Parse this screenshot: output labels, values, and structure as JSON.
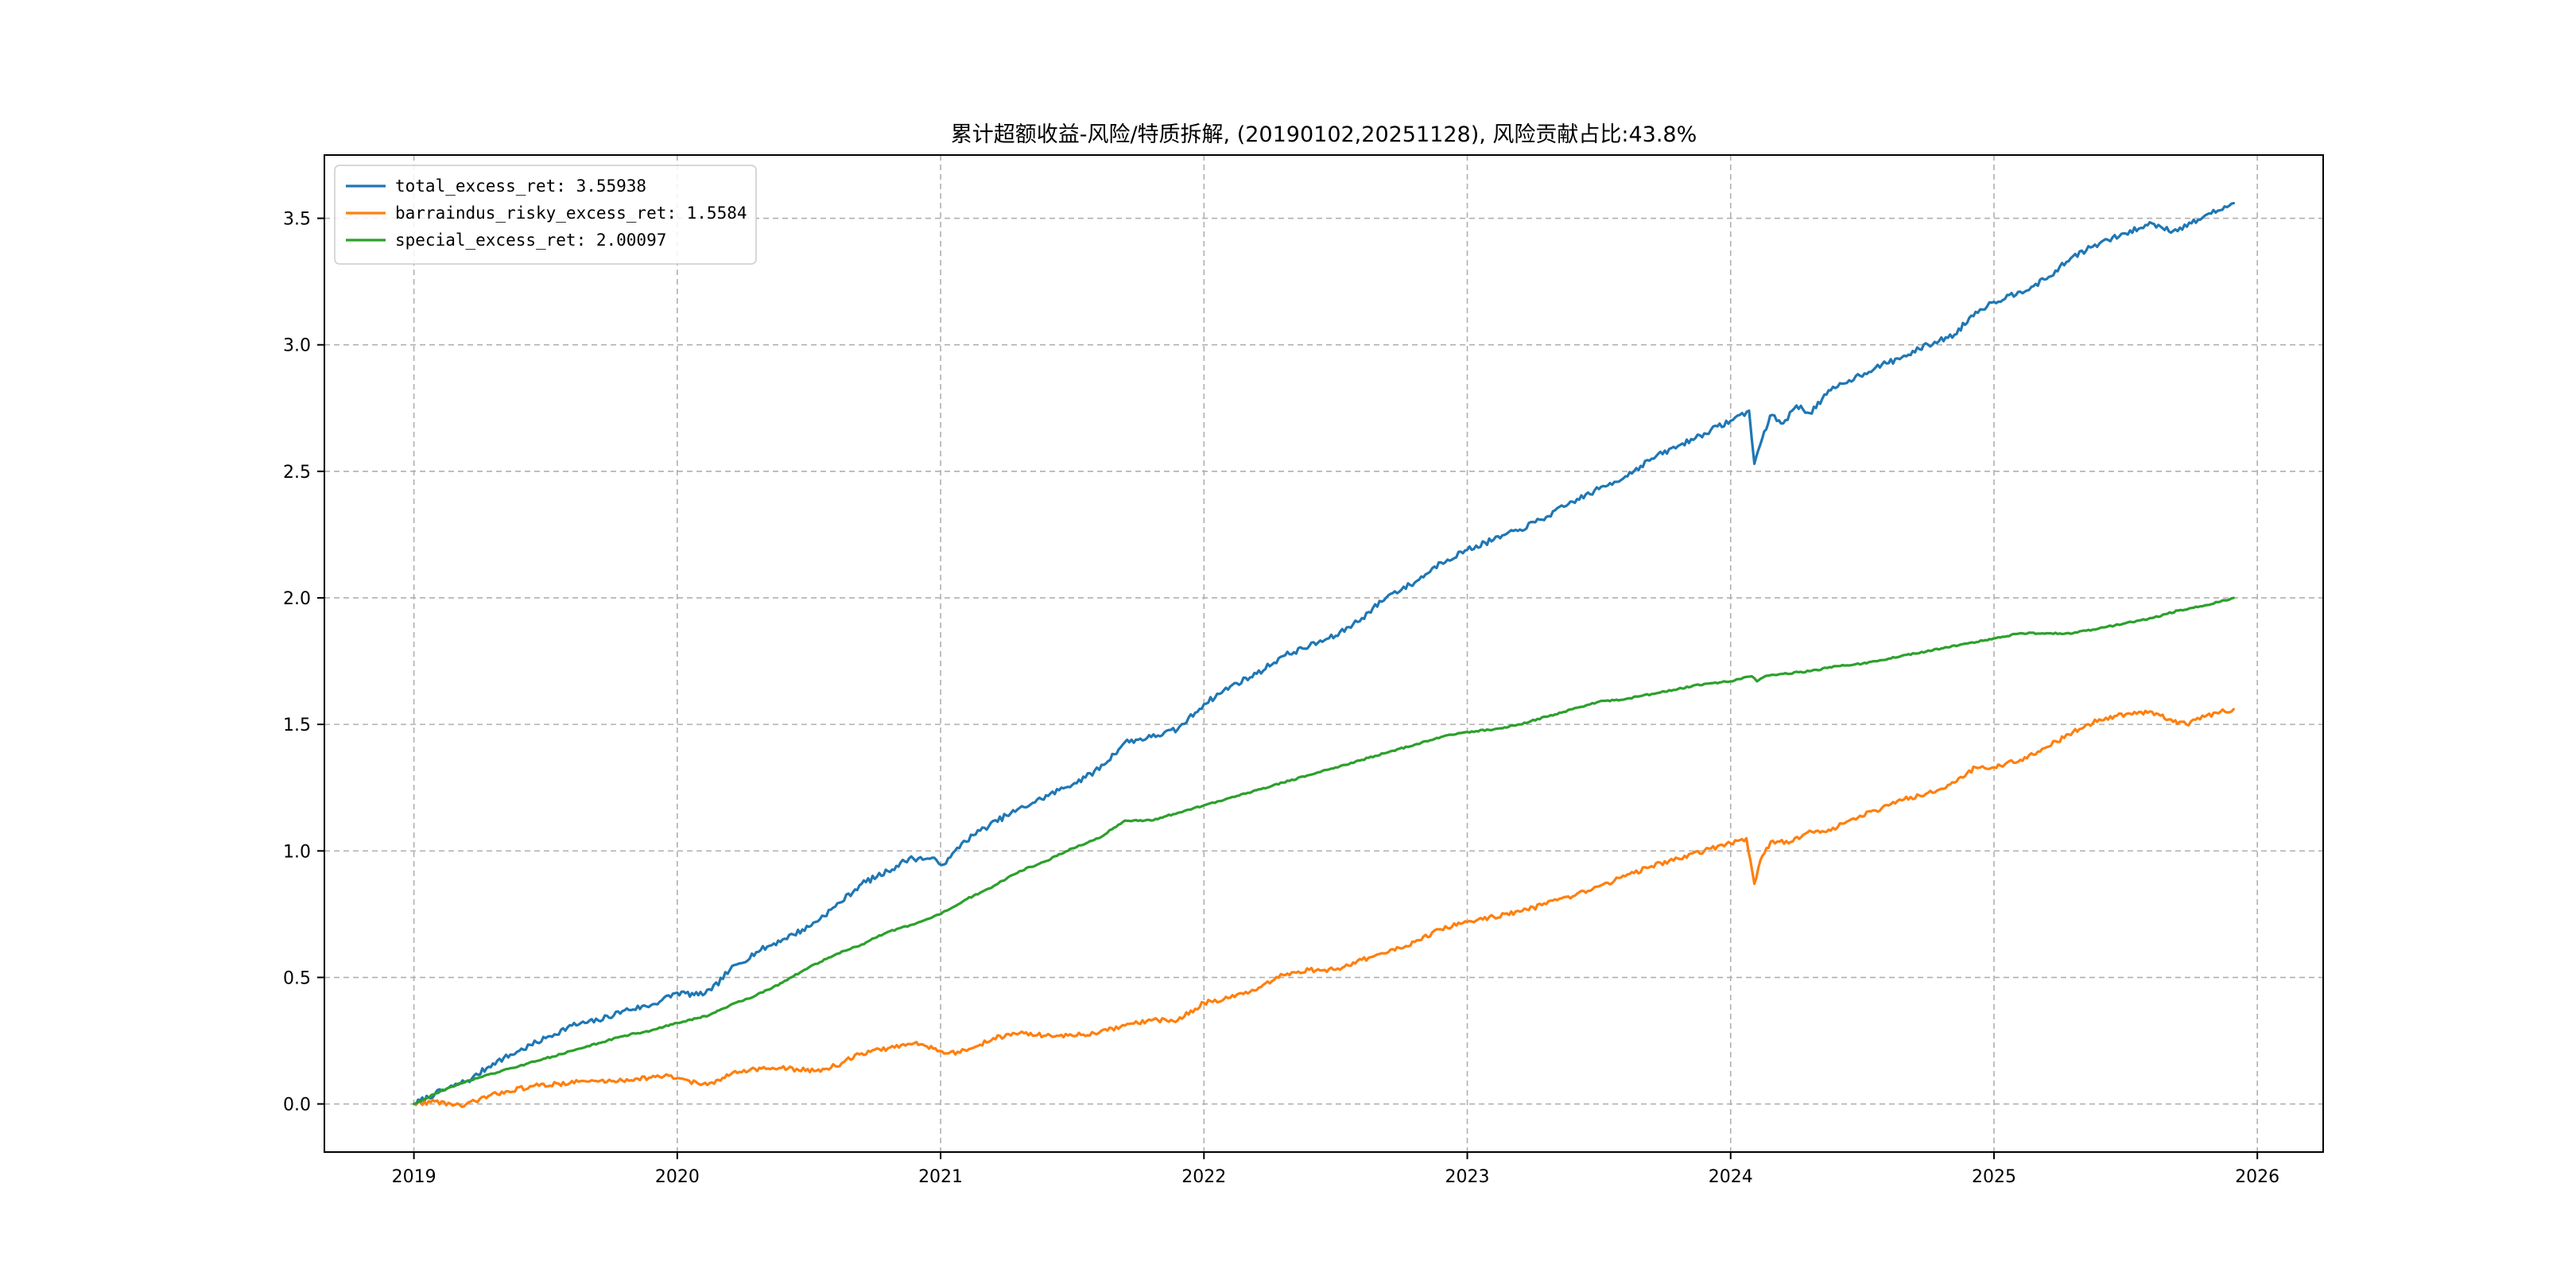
{
  "chart_data": {
    "type": "line",
    "title": "累计超额收益-风险/特质拆解, (20190102,20251128), 风险贡献占比:43.8%",
    "xlabel": "",
    "ylabel": "",
    "xlim": [
      2018.66,
      2026.25
    ],
    "ylim": [
      -0.19,
      3.75
    ],
    "x_ticks": [
      2019,
      2020,
      2021,
      2022,
      2023,
      2024,
      2025,
      2026
    ],
    "x_tick_labels": [
      "2019",
      "2020",
      "2021",
      "2022",
      "2023",
      "2024",
      "2025",
      "2026"
    ],
    "y_ticks": [
      0.0,
      0.5,
      1.0,
      1.5,
      2.0,
      2.5,
      3.0,
      3.5
    ],
    "y_tick_labels": [
      "0.0",
      "0.5",
      "1.0",
      "1.5",
      "2.0",
      "2.5",
      "3.0",
      "3.5"
    ],
    "grid": true,
    "legend_position": "top-left",
    "series": [
      {
        "name": "total_excess_ret: 3.55938",
        "color": "#1f77b4",
        "points": [
          [
            2019.0,
            0.0
          ],
          [
            2019.08,
            0.04
          ],
          [
            2019.15,
            0.07
          ],
          [
            2019.22,
            0.1
          ],
          [
            2019.3,
            0.16
          ],
          [
            2019.4,
            0.21
          ],
          [
            2019.5,
            0.26
          ],
          [
            2019.6,
            0.31
          ],
          [
            2019.7,
            0.33
          ],
          [
            2019.8,
            0.37
          ],
          [
            2019.9,
            0.39
          ],
          [
            2020.0,
            0.44
          ],
          [
            2020.08,
            0.43
          ],
          [
            2020.13,
            0.45
          ],
          [
            2020.2,
            0.53
          ],
          [
            2020.3,
            0.6
          ],
          [
            2020.4,
            0.65
          ],
          [
            2020.5,
            0.7
          ],
          [
            2020.6,
            0.78
          ],
          [
            2020.7,
            0.87
          ],
          [
            2020.8,
            0.92
          ],
          [
            2020.88,
            0.97
          ],
          [
            2020.95,
            0.97
          ],
          [
            2021.02,
            0.95
          ],
          [
            2021.08,
            1.03
          ],
          [
            2021.15,
            1.08
          ],
          [
            2021.25,
            1.14
          ],
          [
            2021.35,
            1.19
          ],
          [
            2021.45,
            1.24
          ],
          [
            2021.55,
            1.29
          ],
          [
            2021.62,
            1.34
          ],
          [
            2021.7,
            1.43
          ],
          [
            2021.8,
            1.45
          ],
          [
            2021.9,
            1.48
          ],
          [
            2022.0,
            1.58
          ],
          [
            2022.1,
            1.65
          ],
          [
            2022.2,
            1.7
          ],
          [
            2022.3,
            1.77
          ],
          [
            2022.4,
            1.81
          ],
          [
            2022.5,
            1.85
          ],
          [
            2022.6,
            1.92
          ],
          [
            2022.7,
            2.01
          ],
          [
            2022.8,
            2.06
          ],
          [
            2022.9,
            2.14
          ],
          [
            2023.0,
            2.19
          ],
          [
            2023.1,
            2.23
          ],
          [
            2023.2,
            2.27
          ],
          [
            2023.3,
            2.32
          ],
          [
            2023.4,
            2.38
          ],
          [
            2023.5,
            2.43
          ],
          [
            2023.6,
            2.48
          ],
          [
            2023.7,
            2.55
          ],
          [
            2023.8,
            2.6
          ],
          [
            2023.9,
            2.65
          ],
          [
            2024.0,
            2.7
          ],
          [
            2024.07,
            2.74
          ],
          [
            2024.09,
            2.53
          ],
          [
            2024.12,
            2.63
          ],
          [
            2024.15,
            2.72
          ],
          [
            2024.2,
            2.69
          ],
          [
            2024.25,
            2.76
          ],
          [
            2024.3,
            2.73
          ],
          [
            2024.38,
            2.82
          ],
          [
            2024.45,
            2.86
          ],
          [
            2024.55,
            2.91
          ],
          [
            2024.65,
            2.95
          ],
          [
            2024.75,
            3.0
          ],
          [
            2024.85,
            3.04
          ],
          [
            2024.93,
            3.13
          ],
          [
            2025.0,
            3.17
          ],
          [
            2025.1,
            3.21
          ],
          [
            2025.2,
            3.26
          ],
          [
            2025.3,
            3.35
          ],
          [
            2025.4,
            3.4
          ],
          [
            2025.5,
            3.44
          ],
          [
            2025.6,
            3.48
          ],
          [
            2025.68,
            3.45
          ],
          [
            2025.75,
            3.48
          ],
          [
            2025.8,
            3.51
          ],
          [
            2025.85,
            3.53
          ],
          [
            2025.91,
            3.56
          ]
        ]
      },
      {
        "name": "barraindus_risky_excess_ret: 1.5584",
        "color": "#ff7f0e",
        "points": [
          [
            2019.0,
            0.0
          ],
          [
            2019.08,
            0.01
          ],
          [
            2019.14,
            0.0
          ],
          [
            2019.19,
            -0.01
          ],
          [
            2019.25,
            0.02
          ],
          [
            2019.35,
            0.05
          ],
          [
            2019.45,
            0.07
          ],
          [
            2019.55,
            0.08
          ],
          [
            2019.65,
            0.09
          ],
          [
            2019.75,
            0.09
          ],
          [
            2019.85,
            0.1
          ],
          [
            2019.95,
            0.11
          ],
          [
            2020.02,
            0.1
          ],
          [
            2020.08,
            0.08
          ],
          [
            2020.14,
            0.08
          ],
          [
            2020.22,
            0.13
          ],
          [
            2020.32,
            0.14
          ],
          [
            2020.42,
            0.14
          ],
          [
            2020.52,
            0.13
          ],
          [
            2020.6,
            0.15
          ],
          [
            2020.7,
            0.2
          ],
          [
            2020.8,
            0.22
          ],
          [
            2020.9,
            0.24
          ],
          [
            2020.98,
            0.22
          ],
          [
            2021.03,
            0.2
          ],
          [
            2021.1,
            0.21
          ],
          [
            2021.2,
            0.26
          ],
          [
            2021.3,
            0.28
          ],
          [
            2021.4,
            0.27
          ],
          [
            2021.5,
            0.27
          ],
          [
            2021.6,
            0.28
          ],
          [
            2021.7,
            0.31
          ],
          [
            2021.8,
            0.33
          ],
          [
            2021.9,
            0.33
          ],
          [
            2022.0,
            0.4
          ],
          [
            2022.1,
            0.42
          ],
          [
            2022.2,
            0.45
          ],
          [
            2022.3,
            0.51
          ],
          [
            2022.4,
            0.53
          ],
          [
            2022.5,
            0.53
          ],
          [
            2022.6,
            0.57
          ],
          [
            2022.7,
            0.6
          ],
          [
            2022.8,
            0.64
          ],
          [
            2022.9,
            0.69
          ],
          [
            2023.0,
            0.72
          ],
          [
            2023.1,
            0.74
          ],
          [
            2023.2,
            0.76
          ],
          [
            2023.3,
            0.79
          ],
          [
            2023.4,
            0.82
          ],
          [
            2023.5,
            0.86
          ],
          [
            2023.6,
            0.9
          ],
          [
            2023.7,
            0.94
          ],
          [
            2023.8,
            0.97
          ],
          [
            2023.9,
            1.0
          ],
          [
            2024.0,
            1.03
          ],
          [
            2024.06,
            1.05
          ],
          [
            2024.09,
            0.87
          ],
          [
            2024.12,
            0.98
          ],
          [
            2024.16,
            1.04
          ],
          [
            2024.22,
            1.03
          ],
          [
            2024.3,
            1.08
          ],
          [
            2024.38,
            1.08
          ],
          [
            2024.45,
            1.12
          ],
          [
            2024.55,
            1.16
          ],
          [
            2024.65,
            1.2
          ],
          [
            2024.75,
            1.23
          ],
          [
            2024.85,
            1.27
          ],
          [
            2024.93,
            1.33
          ],
          [
            2025.0,
            1.33
          ],
          [
            2025.1,
            1.36
          ],
          [
            2025.2,
            1.41
          ],
          [
            2025.3,
            1.47
          ],
          [
            2025.4,
            1.52
          ],
          [
            2025.5,
            1.54
          ],
          [
            2025.6,
            1.55
          ],
          [
            2025.68,
            1.51
          ],
          [
            2025.73,
            1.5
          ],
          [
            2025.8,
            1.53
          ],
          [
            2025.86,
            1.55
          ],
          [
            2025.91,
            1.56
          ]
        ]
      },
      {
        "name": "special_excess_ret: 2.00097",
        "color": "#2ca02c",
        "points": [
          [
            2019.0,
            0.0
          ],
          [
            2019.1,
            0.05
          ],
          [
            2019.2,
            0.09
          ],
          [
            2019.3,
            0.12
          ],
          [
            2019.4,
            0.15
          ],
          [
            2019.5,
            0.18
          ],
          [
            2019.6,
            0.21
          ],
          [
            2019.7,
            0.24
          ],
          [
            2019.8,
            0.27
          ],
          [
            2019.9,
            0.29
          ],
          [
            2020.0,
            0.32
          ],
          [
            2020.08,
            0.34
          ],
          [
            2020.12,
            0.35
          ],
          [
            2020.2,
            0.39
          ],
          [
            2020.3,
            0.43
          ],
          [
            2020.4,
            0.48
          ],
          [
            2020.5,
            0.54
          ],
          [
            2020.6,
            0.59
          ],
          [
            2020.7,
            0.63
          ],
          [
            2020.8,
            0.68
          ],
          [
            2020.9,
            0.71
          ],
          [
            2021.0,
            0.75
          ],
          [
            2021.1,
            0.81
          ],
          [
            2021.2,
            0.86
          ],
          [
            2021.3,
            0.92
          ],
          [
            2021.4,
            0.96
          ],
          [
            2021.5,
            1.01
          ],
          [
            2021.6,
            1.05
          ],
          [
            2021.7,
            1.12
          ],
          [
            2021.8,
            1.12
          ],
          [
            2021.9,
            1.15
          ],
          [
            2022.0,
            1.18
          ],
          [
            2022.1,
            1.21
          ],
          [
            2022.2,
            1.24
          ],
          [
            2022.3,
            1.27
          ],
          [
            2022.4,
            1.3
          ],
          [
            2022.5,
            1.33
          ],
          [
            2022.6,
            1.36
          ],
          [
            2022.7,
            1.39
          ],
          [
            2022.8,
            1.42
          ],
          [
            2022.9,
            1.45
          ],
          [
            2023.0,
            1.47
          ],
          [
            2023.1,
            1.48
          ],
          [
            2023.2,
            1.5
          ],
          [
            2023.3,
            1.53
          ],
          [
            2023.4,
            1.56
          ],
          [
            2023.5,
            1.59
          ],
          [
            2023.6,
            1.6
          ],
          [
            2023.7,
            1.62
          ],
          [
            2023.8,
            1.64
          ],
          [
            2023.9,
            1.66
          ],
          [
            2024.0,
            1.67
          ],
          [
            2024.08,
            1.69
          ],
          [
            2024.1,
            1.67
          ],
          [
            2024.13,
            1.69
          ],
          [
            2024.2,
            1.7
          ],
          [
            2024.3,
            1.71
          ],
          [
            2024.4,
            1.73
          ],
          [
            2024.5,
            1.74
          ],
          [
            2024.6,
            1.76
          ],
          [
            2024.7,
            1.78
          ],
          [
            2024.8,
            1.8
          ],
          [
            2024.9,
            1.82
          ],
          [
            2025.0,
            1.84
          ],
          [
            2025.1,
            1.86
          ],
          [
            2025.2,
            1.86
          ],
          [
            2025.3,
            1.86
          ],
          [
            2025.4,
            1.88
          ],
          [
            2025.5,
            1.9
          ],
          [
            2025.6,
            1.92
          ],
          [
            2025.7,
            1.95
          ],
          [
            2025.8,
            1.97
          ],
          [
            2025.91,
            2.0
          ]
        ]
      }
    ]
  }
}
